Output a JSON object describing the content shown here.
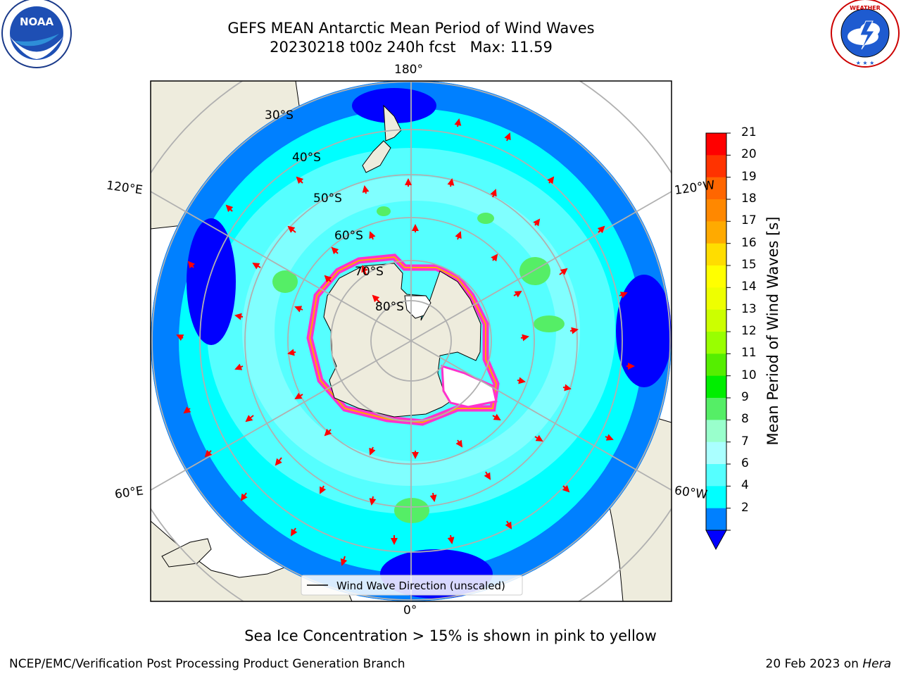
{
  "header": {
    "title_line1": "GEFS MEAN Antarctic Mean Period of Wind Waves",
    "title_line2": "20230218 t00z 240h fcst   Max: 11.59"
  },
  "logos": {
    "left": {
      "name": "noaa-logo",
      "text": "NOAA",
      "ring_text": "NATIONAL OCEANIC AND ATMOSPHERIC ADMINISTRATION · U.S. DEPARTMENT OF COMMERCE"
    },
    "right": {
      "name": "nws-logo",
      "ring_text": "NATIONAL WEATHER SERVICE"
    }
  },
  "map": {
    "projection": "south-polar-stereographic",
    "longitude_labels": {
      "top": "180°",
      "bottom": "0°",
      "upper_left": "120°E",
      "upper_right": "120°W",
      "lower_left": "60°E",
      "lower_right": "60°W"
    },
    "latitude_labels": [
      "30°S",
      "40°S",
      "50°S",
      "60°S",
      "70°S",
      "80°S"
    ],
    "legend": "Wind Wave Direction (unscaled)",
    "colors": {
      "land": "#eeecdd",
      "deep_blue": "#0000ff",
      "blue": "#0080ff",
      "cyan": "#00ffff",
      "light_cyan": "#80ffff",
      "pale_cyan": "#a8fff0",
      "green": "#55ee66",
      "arrows": "#ff0000",
      "sea_ice": "#ff33cc"
    }
  },
  "colorbar": {
    "title": "Mean Period of Wind Waves [s]",
    "ticks": [
      "21",
      "20",
      "19",
      "18",
      "17",
      "16",
      "15",
      "14",
      "13",
      "12",
      "11",
      "10",
      "9",
      "8",
      "7",
      "6",
      "4",
      "2"
    ],
    "colors": [
      "#ff0000",
      "#ff3300",
      "#ff6600",
      "#ff8800",
      "#ffaa00",
      "#ffdd00",
      "#ffff00",
      "#eeff00",
      "#ccff00",
      "#99ff00",
      "#55ee00",
      "#00ee00",
      "#55ee66",
      "#99ffcc",
      "#aaffff",
      "#55ffff",
      "#00ffff",
      "#0080ff"
    ],
    "extend_color": "#0000ff"
  },
  "footer": {
    "note": "Sea Ice Concentration > 15% is shown in pink to yellow",
    "credit": "NCEP/EMC/Verification Post Processing Product Generation Branch",
    "date": "20 Feb 2023 on",
    "machine": "Hera"
  }
}
